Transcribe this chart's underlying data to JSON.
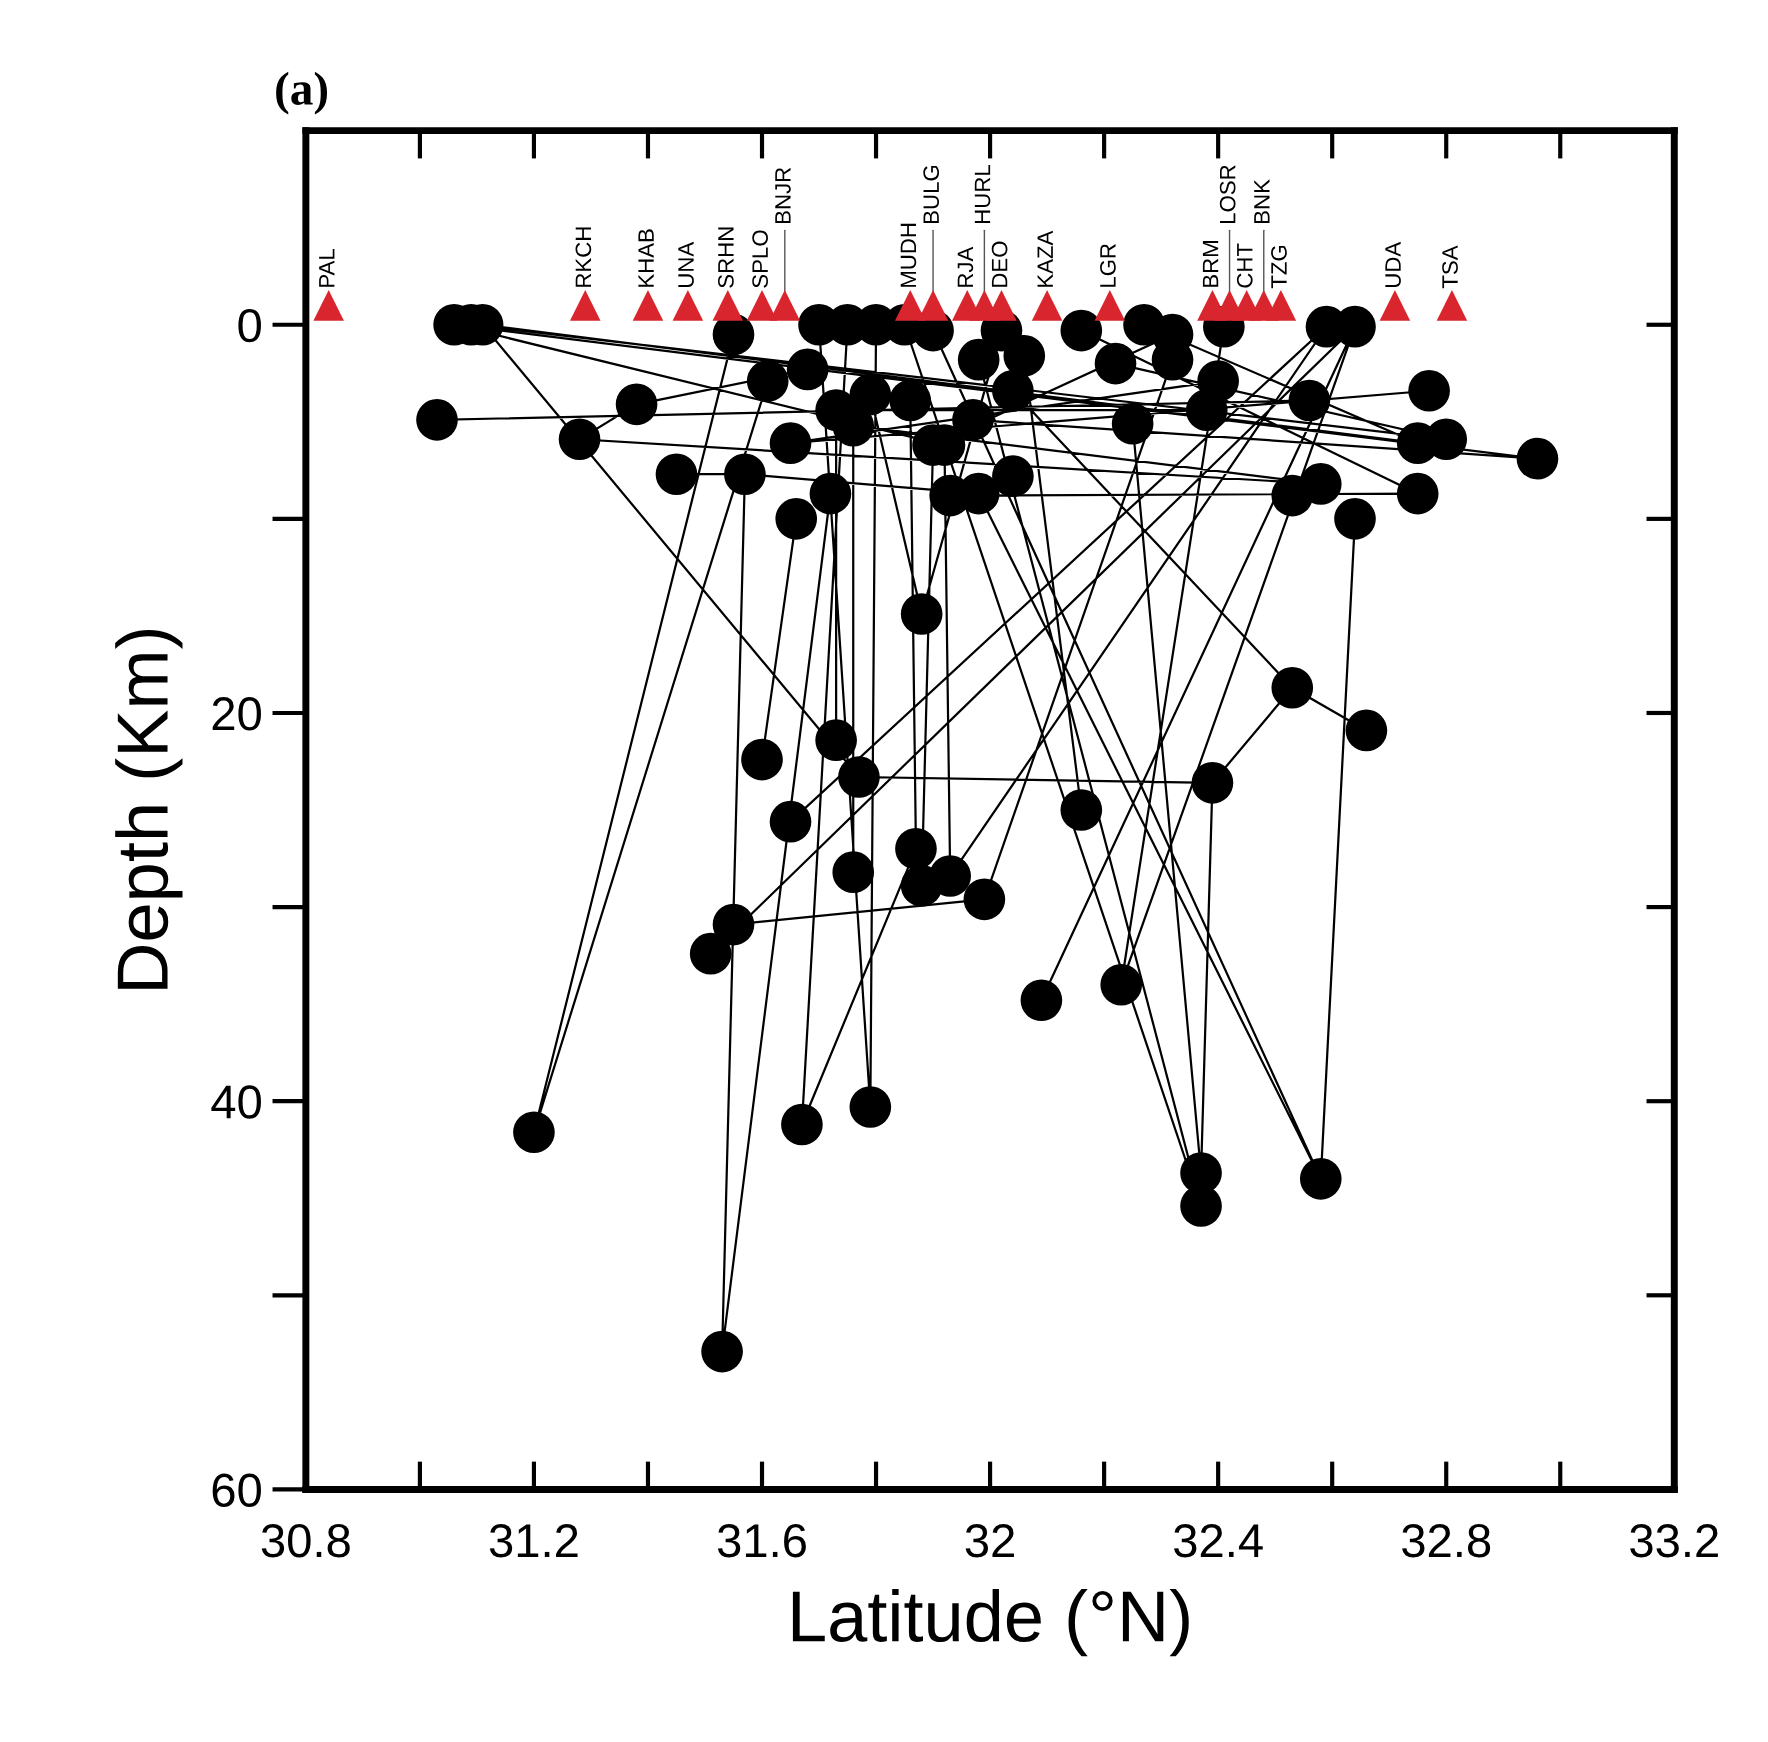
{
  "chart_data": {
    "type": "scatter",
    "xlabel": "Latitude (°N)",
    "ylabel": "Depth (Km)",
    "xlim": [
      30.8,
      33.2
    ],
    "ylim": [
      60,
      -10
    ],
    "xticks": [
      30.8,
      {
        "value": 31.0,
        "label": null
      },
      31.2,
      {
        "value": 31.4,
        "label": null
      },
      31.6,
      {
        "value": 31.8,
        "label": null
      },
      32,
      {
        "value": 32.2,
        "label": null
      },
      32.4,
      {
        "value": 32.6,
        "label": null
      },
      32.8,
      {
        "value": 33.0,
        "label": null
      },
      33.2
    ],
    "yticks": [
      0,
      {
        "value": 10,
        "label": null
      },
      20,
      {
        "value": 30,
        "label": null
      },
      40,
      {
        "value": 50,
        "label": null
      },
      60
    ],
    "grid": false,
    "legend": false,
    "series": [
      {
        "type": "line",
        "color": "#000000",
        "marker": "none",
        "line_style": "solid",
        "x": [
          31.06,
          32.96,
          null,
          31.09,
          32.8,
          null,
          31.11,
          32.75,
          null,
          31.06,
          31.92,
          null,
          31.03,
          32.56,
          null,
          31.28,
          31.38,
          null,
          31.38,
          31.68,
          null,
          31.45,
          31.57,
          null,
          31.57,
          31.98,
          null,
          31.11,
          31.77,
          null,
          31.28,
          32.58,
          null,
          31.53,
          31.57,
          null,
          31.53,
          31.72,
          null,
          31.2,
          31.61,
          null,
          31.2,
          31.55,
          null,
          31.67,
          31.75,
          null,
          31.67,
          31.87,
          null,
          31.79,
          31.7,
          null,
          31.79,
          31.8,
          null,
          31.6,
          31.66,
          null,
          31.73,
          31.73,
          null,
          31.77,
          32.39,
          null,
          31.65,
          32.59,
          null,
          31.76,
          31.76,
          null,
          31.87,
          31.86,
          null,
          31.88,
          31.9,
          null,
          31.93,
          31.92,
          null,
          31.99,
          32.32,
          null,
          32.09,
          32.64,
          null,
          32.23,
          32.41,
          null,
          32.37,
          32.25,
          null,
          32.37,
          32.39,
          null,
          32.37,
          31.98,
          null,
          32.58,
          32.64,
          null,
          32.58,
          31.98,
          null,
          32.53,
          32.66,
          null,
          32.53,
          32.04,
          null,
          32.39,
          32.53,
          null,
          32.16,
          32.06,
          null,
          31.55,
          31.99,
          null,
          31.51,
          32.64,
          null,
          31.88,
          32.02,
          null,
          31.88,
          31.79,
          null,
          31.65,
          32.77,
          null,
          31.97,
          32.96,
          null,
          31.93,
          32.75,
          null,
          32.22,
          32.8,
          null,
          32.4,
          31.65,
          null,
          32.38,
          31.73,
          null,
          32.16,
          32.75,
          null,
          32.27,
          32.75,
          null,
          32.32,
          31.9,
          null,
          32.59,
          31.93,
          null,
          32.64,
          32.23,
          null,
          32.58,
          31.76,
          null,
          31.85,
          32.37,
          null,
          31.9,
          32.58
        ],
        "values": [
          0,
          6.9,
          null,
          0,
          5.9,
          null,
          0,
          6.1,
          null,
          0,
          6.2,
          null,
          4.9,
          3.9,
          null,
          5.9,
          4.1,
          null,
          4.1,
          2.3,
          null,
          7.7,
          7.7,
          null,
          7.7,
          8.7,
          null,
          0,
          23.3,
          null,
          5.9,
          8.2,
          null,
          52.9,
          7.7,
          null,
          52.9,
          8.7,
          null,
          41.6,
          2.9,
          null,
          41.6,
          0.5,
          null,
          41.2,
          0,
          null,
          41.2,
          27.0,
          null,
          40.3,
          0,
          null,
          40.3,
          0,
          null,
          22.4,
          10.0,
          null,
          21.4,
          4.4,
          null,
          23.3,
          23.6,
          null,
          25.6,
          0.1,
          null,
          28.2,
          5.2,
          null,
          27.0,
          3.9,
          null,
          28.9,
          6.2,
          null,
          28.4,
          6.2,
          null,
          29.6,
          1.8,
          null,
          34.8,
          0.1,
          null,
          34.0,
          0.1,
          null,
          43.7,
          5.1,
          null,
          43.7,
          23.6,
          null,
          45.4,
          1.8,
          null,
          44.0,
          10.0,
          null,
          44.0,
          8.7,
          null,
          18.7,
          20.9,
          null,
          18.7,
          3.4,
          null,
          23.6,
          18.7,
          null,
          25.0,
          1.6,
          null,
          30.9,
          29.6,
          null,
          32.4,
          0.1,
          null,
          14.9,
          0.3,
          null,
          14.9,
          3.6,
          null,
          6.1,
          3.4,
          null,
          4.9,
          6.9,
          null,
          8.8,
          8.7,
          null,
          2.0,
          5.9,
          null,
          2.9,
          6.1,
          null,
          4.4,
          4.4,
          null,
          0.3,
          8.7,
          null,
          0,
          6.1,
          null,
          0.5,
          6.2,
          null,
          0.1,
          28.4,
          null,
          0.1,
          34.0,
          null,
          8.2,
          5.2,
          null,
          0,
          45.4,
          null,
          0.3,
          44.0
        ]
      },
      {
        "color": "#000000",
        "marker": "circle",
        "x": [
          31.06,
          31.09,
          31.11,
          31.03,
          31.28,
          31.38,
          31.45,
          31.57,
          31.66,
          31.55,
          31.61,
          31.65,
          31.72,
          31.79,
          31.86,
          31.88,
          31.9,
          31.7,
          31.75,
          31.8,
          31.68,
          31.73,
          31.76,
          31.92,
          31.93,
          31.98,
          32.04,
          31.97,
          32.04,
          31.98,
          32.06,
          32.02,
          32.16,
          32.27,
          32.32,
          32.32,
          32.22,
          32.25,
          32.41,
          32.4,
          32.38,
          32.59,
          32.64,
          32.56,
          32.77,
          32.75,
          32.8,
          32.96,
          32.75,
          32.58,
          32.53,
          32.64,
          32.53,
          32.66,
          32.39,
          32.16,
          31.93,
          31.99,
          32.09,
          32.23,
          32.37,
          32.37,
          32.58,
          31.6,
          31.73,
          31.77,
          31.65,
          31.76,
          31.87,
          31.88,
          31.55,
          31.51,
          31.2,
          31.67,
          31.79,
          31.53,
          31.85,
          31.9
        ],
        "values": [
          0,
          0,
          0,
          4.9,
          5.9,
          4.1,
          7.7,
          7.7,
          10.0,
          0.5,
          2.9,
          6.1,
          8.7,
          3.6,
          3.9,
          14.9,
          6.2,
          0,
          0,
          0,
          2.3,
          4.4,
          5.2,
          6.2,
          8.8,
          8.7,
          7.8,
          4.9,
          3.4,
          1.8,
          1.6,
          0.3,
          0.3,
          0,
          0.5,
          1.8,
          2.0,
          5.1,
          0.1,
          2.9,
          4.4,
          0.1,
          0.1,
          3.9,
          3.4,
          6.1,
          5.9,
          6.9,
          8.7,
          8.2,
          8.8,
          10.0,
          18.7,
          20.9,
          23.6,
          25.0,
          28.4,
          29.6,
          34.8,
          34.0,
          43.7,
          45.4,
          44.0,
          22.4,
          21.4,
          23.3,
          25.6,
          28.2,
          27.0,
          28.9,
          30.9,
          32.4,
          41.6,
          41.2,
          40.3,
          52.9,
          0,
          0.3
        ]
      },
      {
        "color": "#d9262e",
        "marker": "triangle",
        "x": [
          30.84,
          31.29,
          31.4,
          31.47,
          31.54,
          31.6,
          31.64,
          31.86,
          31.9,
          31.96,
          31.99,
          32.02,
          32.1,
          32.21,
          32.39,
          32.42,
          32.45,
          32.48,
          32.51,
          32.71,
          32.81
        ],
        "values": [
          -1,
          -1,
          -1,
          -1,
          -1,
          -1,
          -1,
          -1,
          -1,
          -1,
          -1,
          -1,
          -1,
          -1,
          -1,
          -1,
          -1,
          -1,
          -1,
          -1,
          -1
        ]
      }
    ],
    "annotations": [
      "(a)",
      {
        "text": "PAL",
        "x": 30.84,
        "y": -1
      },
      {
        "text": "RKCH",
        "x": 31.29,
        "y": -1
      },
      {
        "text": "KHAB",
        "x": 31.4,
        "y": -1
      },
      {
        "text": "UNA",
        "x": 31.47,
        "y": -1
      },
      {
        "text": "SRHN",
        "x": 31.54,
        "y": -1
      },
      {
        "text": "SPLO",
        "x": 31.6,
        "y": -1
      },
      {
        "text": "BNJR",
        "x": 31.64,
        "y": -1
      },
      {
        "text": "MUDH",
        "x": 31.86,
        "y": -1
      },
      {
        "text": "BULG",
        "x": 31.9,
        "y": -1
      },
      {
        "text": "RJA",
        "x": 31.96,
        "y": -1
      },
      {
        "text": "HURL",
        "x": 31.99,
        "y": -1
      },
      {
        "text": "DEO",
        "x": 32.02,
        "y": -1
      },
      {
        "text": "KAZA",
        "x": 32.1,
        "y": -1
      },
      {
        "text": "LGR",
        "x": 32.21,
        "y": -1
      },
      {
        "text": "BRM",
        "x": 32.39,
        "y": -1
      },
      {
        "text": "LOSR",
        "x": 32.42,
        "y": -1
      },
      {
        "text": "CHT",
        "x": 32.45,
        "y": -1
      },
      {
        "text": "BNK",
        "x": 32.48,
        "y": -1
      },
      {
        "text": "TZG",
        "x": 32.51,
        "y": -1
      },
      {
        "text": "UDA",
        "x": 32.71,
        "y": -1
      },
      {
        "text": "TSA",
        "x": 32.81,
        "y": -1
      }
    ]
  }
}
